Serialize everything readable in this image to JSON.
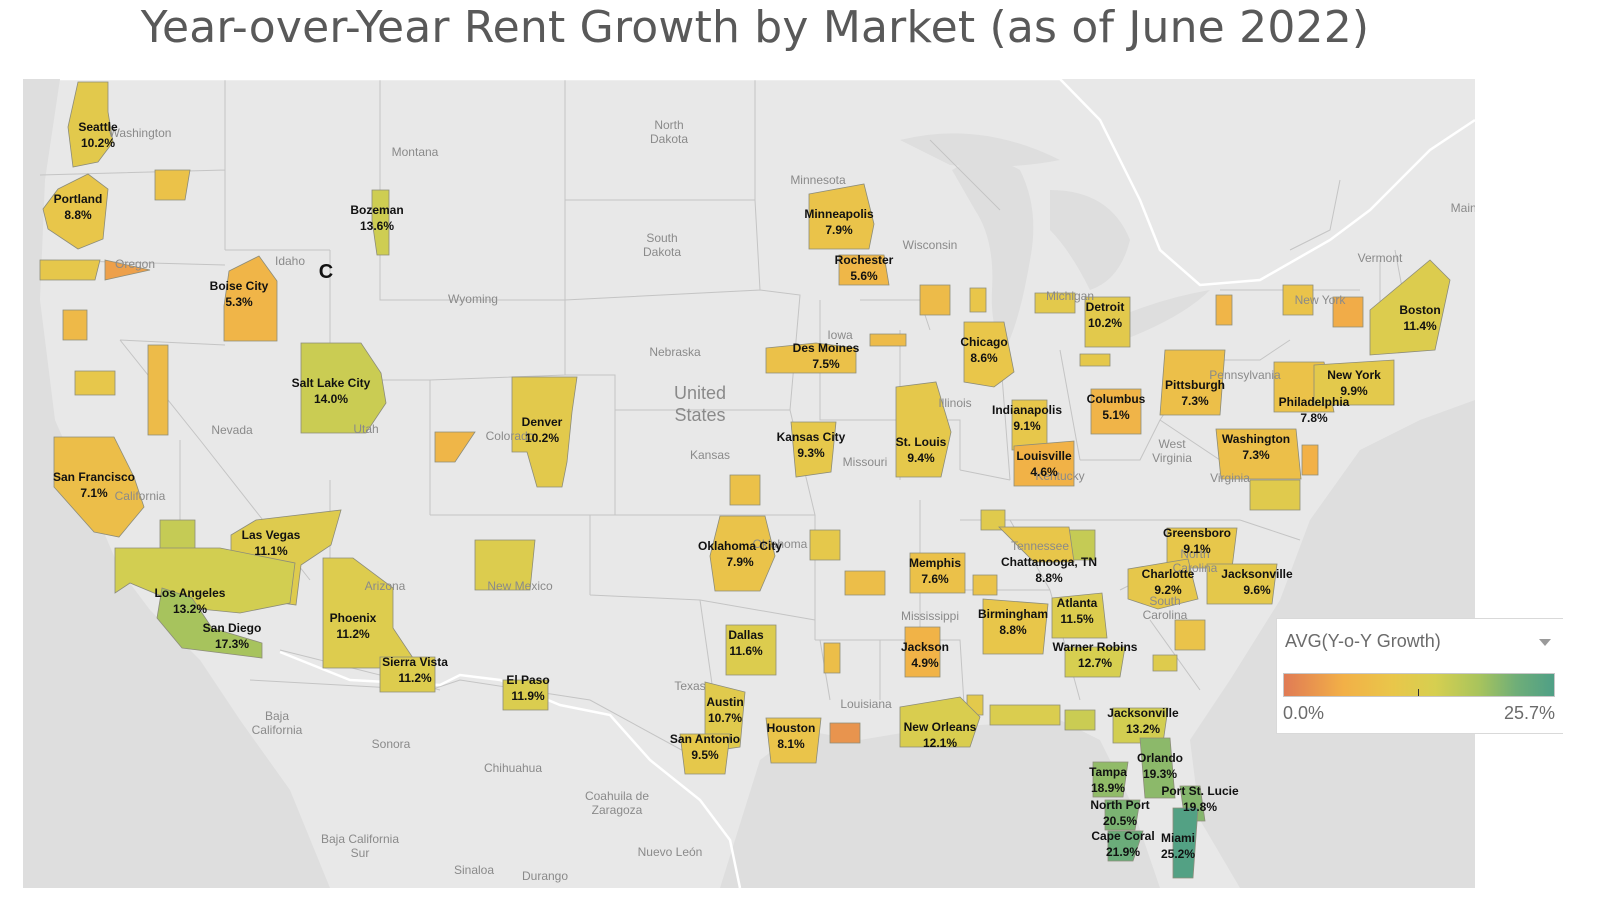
{
  "title": "Year-over-Year Rent Growth by Market (as of June 2022)",
  "legend": {
    "title": "AVG(Y-o-Y Growth)",
    "min_label": "0.0%",
    "max_label": "25.7%",
    "min": 0.0,
    "max": 25.7,
    "colors": [
      "#e07b55",
      "#f2b047",
      "#e9c64a",
      "#d6cf50",
      "#a9c45c",
      "#6fae78",
      "#4f9f86"
    ]
  },
  "map": {
    "background_color": "#e8e8e8",
    "stray_label": "C",
    "country_label": [
      "United",
      "States"
    ],
    "geo_labels": [
      "Washington",
      "Montana",
      "North Dakota",
      "South Dakota",
      "Minnesota",
      "Wisconsin",
      "Michigan",
      "Oregon",
      "Idaho",
      "Wyoming",
      "Nebraska",
      "Iowa",
      "Illinois",
      "Nevada",
      "Utah",
      "Colorado",
      "Kansas",
      "Missouri",
      "California",
      "Arizona",
      "New Mexico",
      "Oklahoma",
      "Texas",
      "Louisiana",
      "Mississippi",
      "Tennessee",
      "Kentucky",
      "West Virginia",
      "Virginia",
      "North Carolina",
      "South Carolina",
      "Pennsylvania",
      "New York",
      "Vermont",
      "Maine",
      "Baja California",
      "Baja California Sur",
      "Sonora",
      "Chihuahua",
      "Coahuila de Zaragoza",
      "Nuevo León",
      "Sinaloa",
      "Durango"
    ],
    "markets": [
      {
        "name": "Seattle",
        "value": "10.2%",
        "growth": 10.2
      },
      {
        "name": "Portland",
        "value": "8.8%",
        "growth": 8.8
      },
      {
        "name": "Bozeman",
        "value": "13.6%",
        "growth": 13.6
      },
      {
        "name": "Boise City",
        "value": "5.3%",
        "growth": 5.3
      },
      {
        "name": "Salt Lake City",
        "value": "14.0%",
        "growth": 14.0
      },
      {
        "name": "Denver",
        "value": "10.2%",
        "growth": 10.2
      },
      {
        "name": "San Francisco",
        "value": "7.1%",
        "growth": 7.1
      },
      {
        "name": "Las Vegas",
        "value": "11.1%",
        "growth": 11.1
      },
      {
        "name": "Los Angeles",
        "value": "13.2%",
        "growth": 13.2
      },
      {
        "name": "San Diego",
        "value": "17.3%",
        "growth": 17.3
      },
      {
        "name": "Phoenix",
        "value": "11.2%",
        "growth": 11.2
      },
      {
        "name": "Sierra Vista",
        "value": "11.2%",
        "growth": 11.2
      },
      {
        "name": "El Paso",
        "value": "11.9%",
        "growth": 11.9
      },
      {
        "name": "Minneapolis",
        "value": "7.9%",
        "growth": 7.9
      },
      {
        "name": "Rochester",
        "value": "5.6%",
        "growth": 5.6
      },
      {
        "name": "Des Moines",
        "value": "7.5%",
        "growth": 7.5
      },
      {
        "name": "Kansas City",
        "value": "9.3%",
        "growth": 9.3
      },
      {
        "name": "Oklahoma City",
        "value": "7.9%",
        "growth": 7.9
      },
      {
        "name": "Dallas",
        "value": "11.6%",
        "growth": 11.6
      },
      {
        "name": "Austin",
        "value": "10.7%",
        "growth": 10.7
      },
      {
        "name": "San Antonio",
        "value": "9.5%",
        "growth": 9.5
      },
      {
        "name": "Houston",
        "value": "8.1%",
        "growth": 8.1
      },
      {
        "name": "St. Louis",
        "value": "9.4%",
        "growth": 9.4
      },
      {
        "name": "Chicago",
        "value": "8.6%",
        "growth": 8.6
      },
      {
        "name": "Detroit",
        "value": "10.2%",
        "growth": 10.2
      },
      {
        "name": "Indianapolis",
        "value": "9.1%",
        "growth": 9.1
      },
      {
        "name": "Columbus",
        "value": "5.1%",
        "growth": 5.1
      },
      {
        "name": "Louisville",
        "value": "4.6%",
        "growth": 4.6
      },
      {
        "name": "Pittsburgh",
        "value": "7.3%",
        "growth": 7.3
      },
      {
        "name": "Memphis",
        "value": "7.6%",
        "growth": 7.6
      },
      {
        "name": "Chattanooga, TN",
        "value": "8.8%",
        "growth": 8.8
      },
      {
        "name": "Birmingham",
        "value": "8.8%",
        "growth": 8.8
      },
      {
        "name": "Jackson",
        "value": "4.9%",
        "growth": 4.9
      },
      {
        "name": "Atlanta",
        "value": "11.5%",
        "growth": 11.5
      },
      {
        "name": "Warner Robins",
        "value": "12.7%",
        "growth": 12.7
      },
      {
        "name": "New Orleans",
        "value": "12.1%",
        "growth": 12.1
      },
      {
        "name": "Greensboro",
        "value": "9.1%",
        "growth": 9.1
      },
      {
        "name": "Charlotte",
        "value": "9.2%",
        "growth": 9.2
      },
      {
        "name": "Jacksonville",
        "value": "9.6%",
        "growth": 9.6
      },
      {
        "name": "Washington",
        "value": "7.3%",
        "growth": 7.3
      },
      {
        "name": "Philadelphia",
        "value": "7.8%",
        "growth": 7.8
      },
      {
        "name": "New York",
        "value": "9.9%",
        "growth": 9.9
      },
      {
        "name": "Boston",
        "value": "11.4%",
        "growth": 11.4
      },
      {
        "name": "Jacksonville",
        "value": "13.2%",
        "growth": 13.2
      },
      {
        "name": "Orlando",
        "value": "19.3%",
        "growth": 19.3
      },
      {
        "name": "Tampa",
        "value": "18.9%",
        "growth": 18.9
      },
      {
        "name": "Port St. Lucie",
        "value": "19.8%",
        "growth": 19.8
      },
      {
        "name": "North Port",
        "value": "20.5%",
        "growth": 20.5
      },
      {
        "name": "Cape Coral",
        "value": "21.9%",
        "growth": 21.9
      },
      {
        "name": "Miami",
        "value": "25.2%",
        "growth": 25.2
      }
    ]
  }
}
